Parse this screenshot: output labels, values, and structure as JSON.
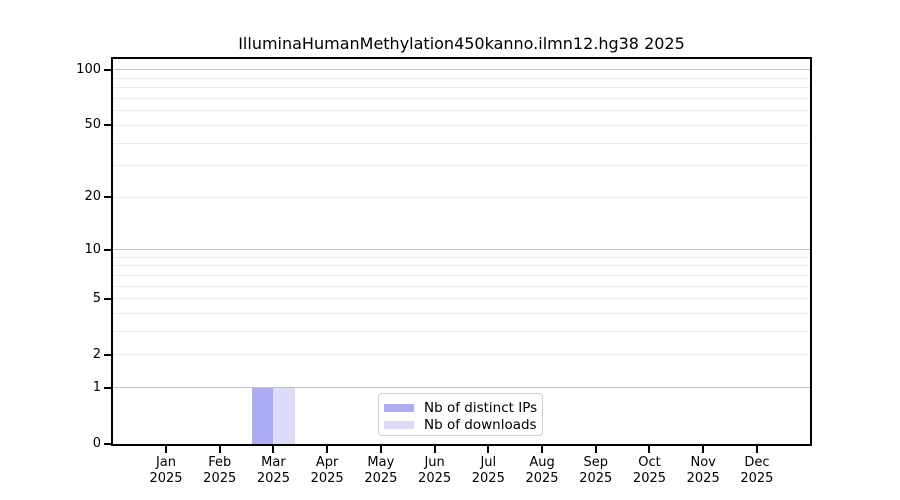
{
  "figure": {
    "title": "IlluminaHumanMethylation450kanno.ilmn12.hg38 2025",
    "background": "#ffffff"
  },
  "legend": {
    "position": "lower center",
    "items": [
      {
        "label": "Nb of distinct IPs",
        "color": "#acacf2"
      },
      {
        "label": "Nb of downloads",
        "color": "#dcdcf8"
      }
    ]
  },
  "chart_data": {
    "type": "bar",
    "title": "IlluminaHumanMethylation450kanno.ilmn12.hg38 2025",
    "scale": "log1p",
    "grid": true,
    "categories": [
      "Jan",
      "Feb",
      "Mar",
      "Apr",
      "May",
      "Jun",
      "Jul",
      "Aug",
      "Sep",
      "Oct",
      "Nov",
      "Dec"
    ],
    "x_sublabel": "2025",
    "series": [
      {
        "name": "Nb of distinct IPs",
        "color": "#acacf2",
        "values": [
          0,
          0,
          1,
          0,
          0,
          0,
          0,
          0,
          0,
          0,
          0,
          0
        ]
      },
      {
        "name": "Nb of downloads",
        "color": "#dcdcf8",
        "values": [
          0,
          0,
          1,
          0,
          0,
          0,
          0,
          0,
          0,
          0,
          0,
          0
        ]
      }
    ],
    "y_ticks": [
      0,
      1,
      2,
      5,
      10,
      20,
      50,
      100
    ],
    "gridlines": {
      "major": [
        1,
        10,
        100
      ],
      "minor": [
        2,
        3,
        4,
        5,
        6,
        7,
        8,
        9,
        20,
        30,
        40,
        50,
        60,
        70,
        80,
        90
      ]
    },
    "ylim": [
      0,
      115
    ],
    "xlabel": "",
    "ylabel": ""
  }
}
